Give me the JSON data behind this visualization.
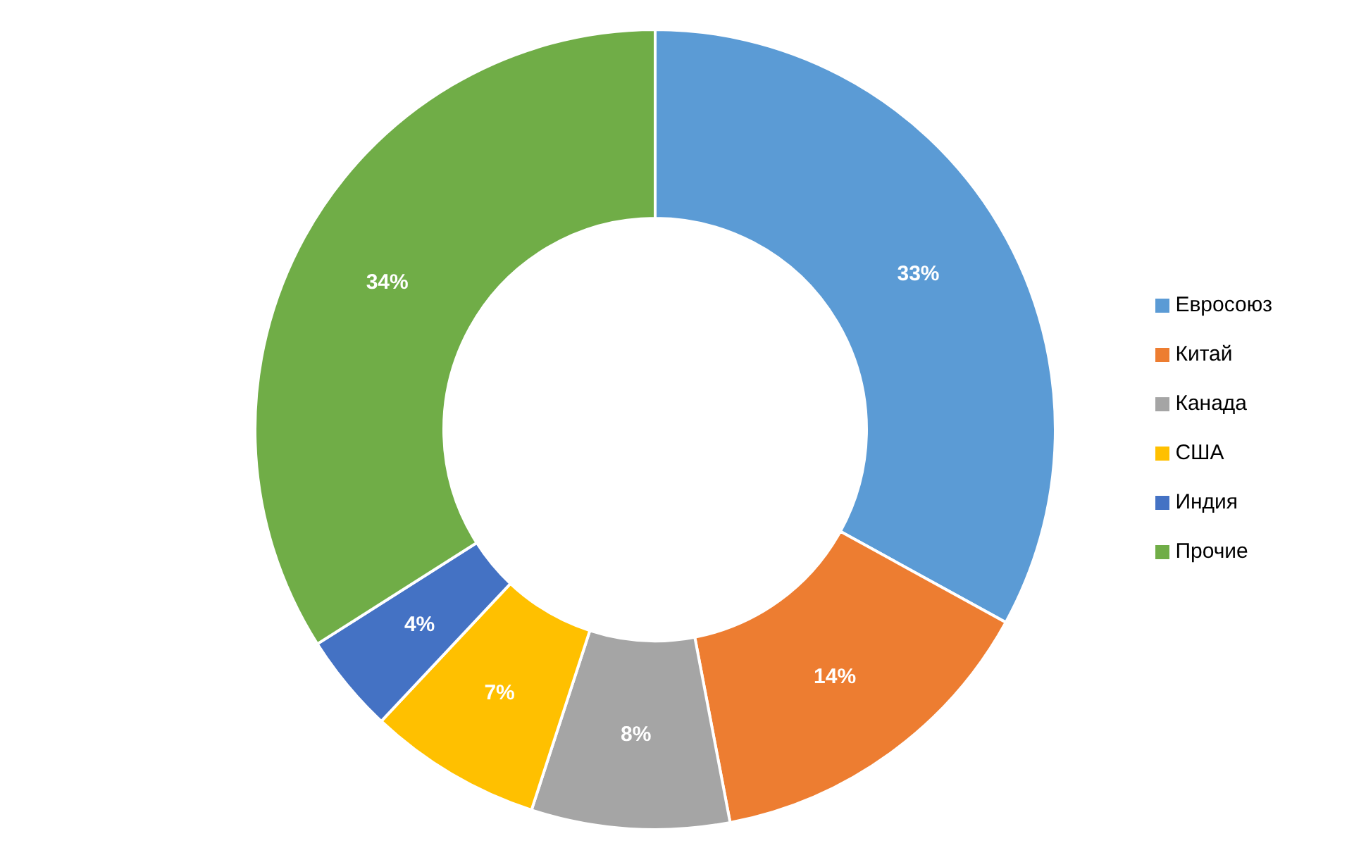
{
  "chart_data": {
    "type": "donut",
    "categories": [
      "Евросоюз",
      "Китай",
      "Канада",
      "США",
      "Индия",
      "Прочие"
    ],
    "values": [
      33,
      14,
      8,
      7,
      4,
      34
    ],
    "colors": [
      "#5b9bd5",
      "#ed7d31",
      "#a5a5a5",
      "#ffc000",
      "#4472c4",
      "#70ad47"
    ],
    "value_labels": [
      "33%",
      "14%",
      "8%",
      "7%",
      "4%",
      "34%"
    ],
    "legend": "right"
  }
}
